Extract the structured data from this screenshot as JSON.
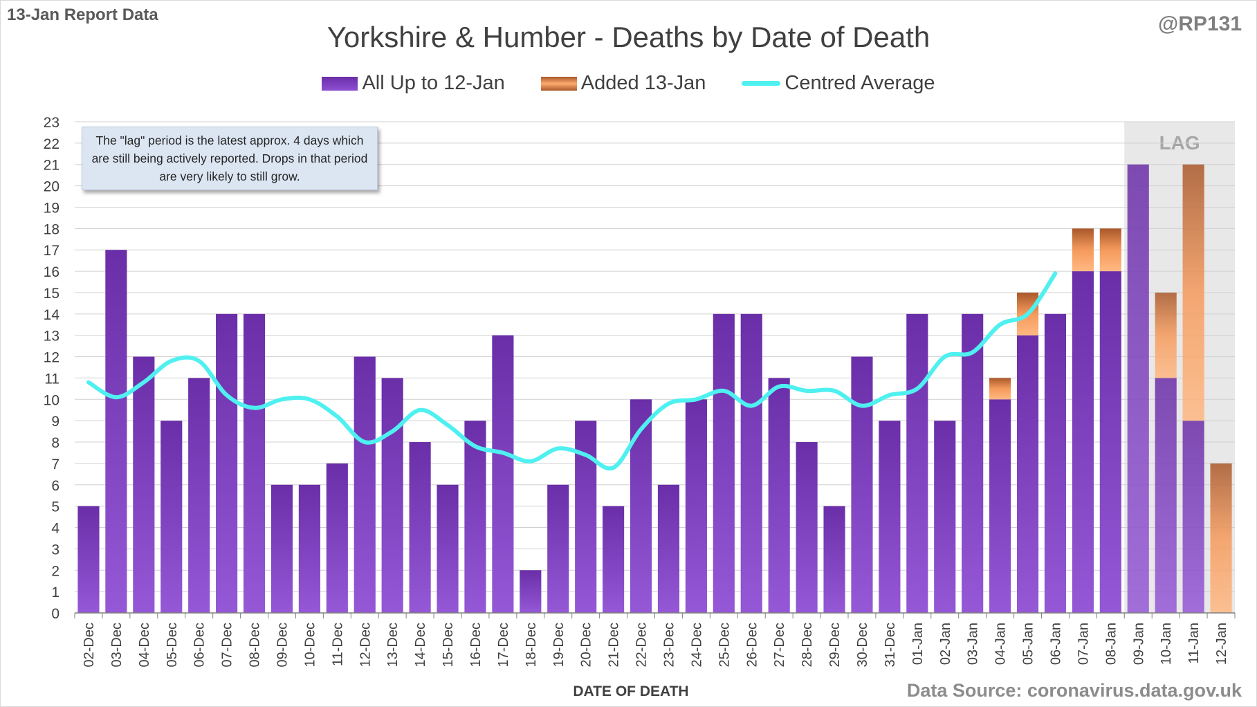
{
  "header": {
    "report_label": "13-Jan Report Data",
    "handle": "@RP131",
    "title": "Yorkshire & Humber - Deaths by Date of Death"
  },
  "annotation": {
    "note": "The \"lag\" period is the latest approx. 4 days which are still being actively reported.  Drops in that period are very likely to still grow.",
    "lag_label": "LAG"
  },
  "footer": {
    "source": "Data Source: coronavirus.data.gov.uk"
  },
  "colors": {
    "purple": "#7a36c0",
    "orange": "#e8823f",
    "average_line": "#4ff0f0",
    "lag_shade": "#e8e8e8"
  },
  "chart_data": {
    "type": "bar",
    "stacked": true,
    "xlabel": "DATE OF DEATH",
    "ylabel": "",
    "ylim": [
      0,
      23
    ],
    "yticks": [
      0,
      1,
      2,
      3,
      4,
      5,
      6,
      7,
      8,
      9,
      10,
      11,
      12,
      13,
      14,
      15,
      16,
      17,
      18,
      19,
      20,
      21,
      22,
      23
    ],
    "grid": true,
    "legend_position": "top",
    "categories": [
      "02-Dec",
      "03-Dec",
      "04-Dec",
      "05-Dec",
      "06-Dec",
      "07-Dec",
      "08-Dec",
      "09-Dec",
      "10-Dec",
      "11-Dec",
      "12-Dec",
      "13-Dec",
      "14-Dec",
      "15-Dec",
      "16-Dec",
      "17-Dec",
      "18-Dec",
      "19-Dec",
      "20-Dec",
      "21-Dec",
      "22-Dec",
      "23-Dec",
      "24-Dec",
      "25-Dec",
      "26-Dec",
      "27-Dec",
      "28-Dec",
      "29-Dec",
      "30-Dec",
      "31-Dec",
      "01-Jan",
      "02-Jan",
      "03-Jan",
      "04-Jan",
      "05-Jan",
      "06-Jan",
      "07-Jan",
      "08-Jan",
      "09-Jan",
      "10-Jan",
      "11-Jan",
      "12-Jan"
    ],
    "series": [
      {
        "name": "All Up to 12-Jan",
        "values": [
          5,
          17,
          12,
          9,
          11,
          14,
          14,
          6,
          6,
          7,
          12,
          11,
          8,
          6,
          9,
          13,
          2,
          6,
          9,
          5,
          10,
          6,
          10,
          14,
          14,
          11,
          8,
          5,
          12,
          9,
          14,
          9,
          14,
          10,
          13,
          14,
          16,
          16,
          21,
          11,
          9,
          0
        ]
      },
      {
        "name": "Added 13-Jan",
        "values": [
          0,
          0,
          0,
          0,
          0,
          0,
          0,
          0,
          0,
          0,
          0,
          0,
          0,
          0,
          0,
          0,
          0,
          0,
          0,
          0,
          0,
          0,
          0,
          0,
          0,
          0,
          0,
          0,
          0,
          0,
          0,
          0,
          0,
          1,
          2,
          0,
          2,
          2,
          0,
          4,
          12,
          7
        ]
      },
      {
        "name": "Centred Average",
        "type": "line",
        "values": [
          10.8,
          10.1,
          10.8,
          11.8,
          11.8,
          10.2,
          9.6,
          10.0,
          10.0,
          9.2,
          8.0,
          8.5,
          9.5,
          8.8,
          7.8,
          7.5,
          7.1,
          7.7,
          7.4,
          6.8,
          8.6,
          9.8,
          10.0,
          10.4,
          9.7,
          10.6,
          10.4,
          10.4,
          9.7,
          10.2,
          10.5,
          12.0,
          12.2,
          13.5,
          14.0,
          15.9,
          null,
          null,
          null,
          null,
          null,
          null
        ]
      }
    ],
    "lag_categories": [
      "09-Jan",
      "10-Jan",
      "11-Jan",
      "12-Jan"
    ]
  }
}
